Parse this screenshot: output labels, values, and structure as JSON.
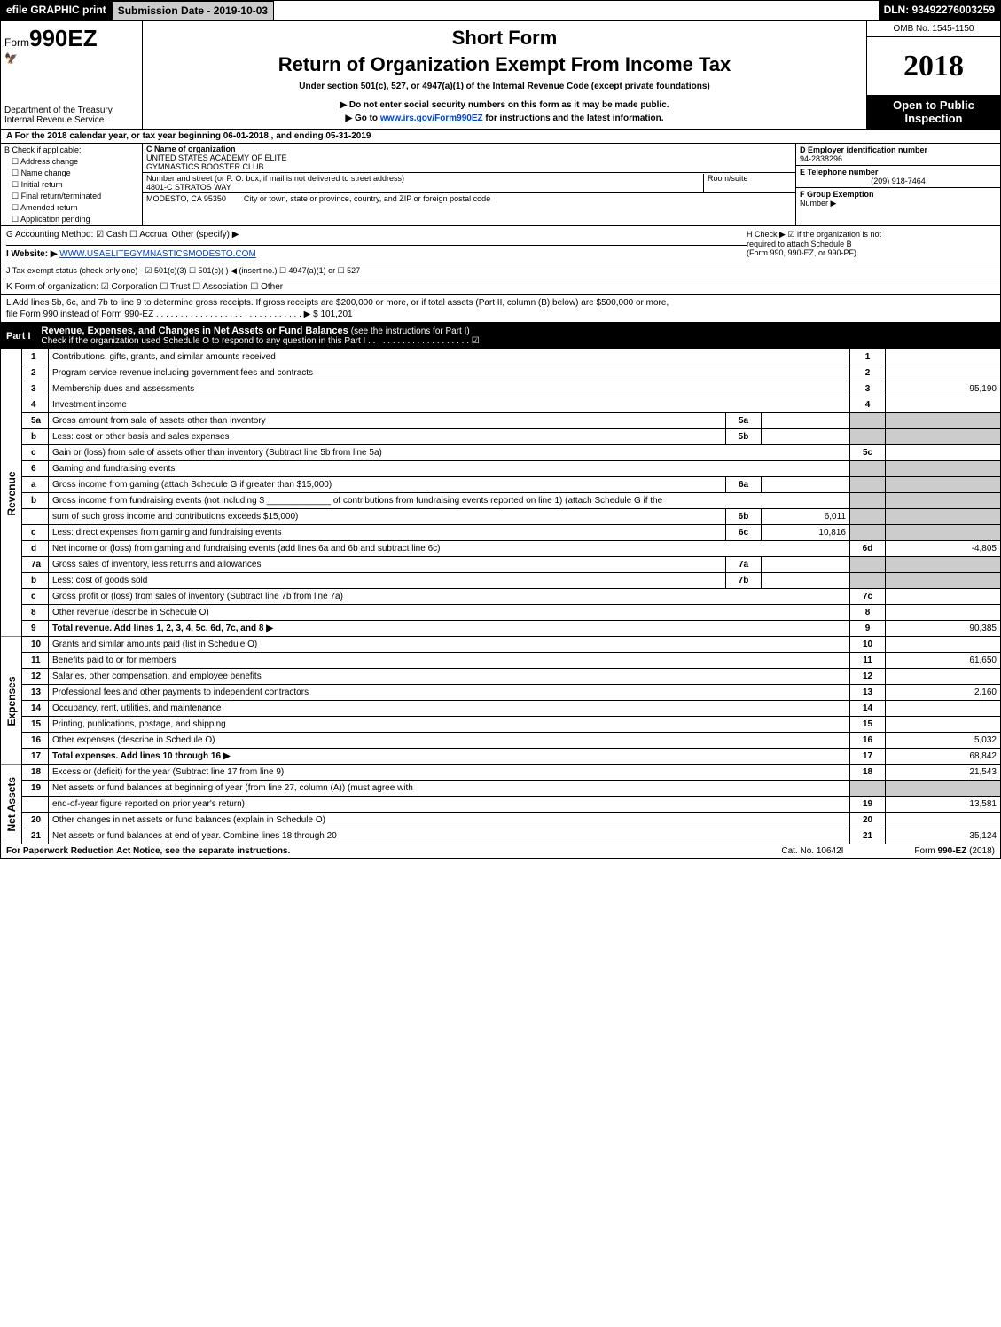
{
  "topbar": {
    "efile": "efile GRAPHIC print",
    "subdate": "Submission Date - 2019-10-03",
    "dln": "DLN: 93492276003259"
  },
  "header": {
    "form_prefix": "Form",
    "form_num": "990EZ",
    "dept1": "Department of the Treasury",
    "dept2": "Internal Revenue Service",
    "short": "Short Form",
    "title": "Return of Organization Exempt From Income Tax",
    "under": "Under section 501(c), 527, or 4947(a)(1) of the Internal Revenue Code (except private foundations)",
    "donot": "▶ Do not enter social security numbers on this form as it may be made public.",
    "goto_pre": "▶ Go to ",
    "goto_link": "www.irs.gov/Form990EZ",
    "goto_post": " for instructions and the latest information.",
    "omb": "OMB No. 1545-1150",
    "year": "2018",
    "open1": "Open to Public",
    "open2": "Inspection"
  },
  "lineA": {
    "pre": "A   For the 2018 calendar year, or tax year beginning ",
    "begin": "06-01-2018",
    "mid": " , and ending ",
    "end": "05-31-2019"
  },
  "colB": {
    "hdr": "B  Check if applicable:",
    "items": [
      "Address change",
      "Name change",
      "Initial return",
      "Final return/terminated",
      "Amended return",
      "Application pending"
    ]
  },
  "colC": {
    "c_lab": "C Name of organization",
    "org1": "UNITED STATES ACADEMY OF ELITE",
    "org2": "GYMNASTICS BOOSTER CLUB",
    "street_lab": "Number and street (or P. O. box, if mail is not delivered to street address)",
    "street": "4801-C STRATOS WAY",
    "rs_lab": "Room/suite",
    "city_lab": "City or town, state or province, country, and ZIP or foreign postal code",
    "city": "MODESTO, CA   95350"
  },
  "colD": {
    "d_lab": "D Employer identification number",
    "ein": "94-2838296",
    "e_lab": "E Telephone number",
    "phone": "(209) 918-7464",
    "f_lab": "F Group Exemption",
    "f_lab2": "Number   ▶"
  },
  "gh": {
    "g": "G Accounting Method:   ☑ Cash   ☐ Accrual   Other (specify) ▶",
    "h1": "H   Check ▶   ☑   if the organization is not",
    "h2": "required to attach Schedule B",
    "h3": "(Form 990, 990-EZ, or 990-PF).",
    "i_lab": "I Website: ▶",
    "i_url": "WWW.USAELITEGYMNASTICSMODESTO.COM",
    "j": "J Tax-exempt status (check only one) -  ☑ 501(c)(3)  ☐ 501(c)(  ) ◀ (insert no.)  ☐ 4947(a)(1) or  ☐ 527",
    "k": "K Form of organization:   ☑ Corporation   ☐ Trust   ☐ Association   ☐ Other",
    "l1": "L Add lines 5b, 6c, and 7b to line 9 to determine gross receipts. If gross receipts are $200,000 or more, or if total assets (Part II, column (B) below) are $500,000 or more,",
    "l2": "file Form 990 instead of Form 990-EZ  . . . . . . . . . . . . . . . . . . . . . . . . . . . . . .  ▶ $ 101,201"
  },
  "part1": {
    "label": "Part I",
    "title": "Revenue, Expenses, and Changes in Net Assets or Fund Balances ",
    "title2": "(see the instructions for Part I)",
    "sub": "Check if the organization used Schedule O to respond to any question in this Part I . . . . . . . . . . . . . . . . . . . . .   ☑"
  },
  "sides": {
    "rev": "Revenue",
    "exp": "Expenses",
    "net": "Net Assets"
  },
  "rows": [
    {
      "n": "1",
      "d": "Contributions, gifts, grants, and similar amounts received",
      "rn": "1",
      "rv": ""
    },
    {
      "n": "2",
      "d": "Program service revenue including government fees and contracts",
      "rn": "2",
      "rv": ""
    },
    {
      "n": "3",
      "d": "Membership dues and assessments",
      "rn": "3",
      "rv": "95,190"
    },
    {
      "n": "4",
      "d": "Investment income",
      "rn": "4",
      "rv": ""
    },
    {
      "n": "5a",
      "d": "Gross amount from sale of assets other than inventory",
      "mid": "5a",
      "midv": "",
      "grey": true
    },
    {
      "n": "b",
      "d": "Less: cost or other basis and sales expenses",
      "mid": "5b",
      "midv": "",
      "grey": true
    },
    {
      "n": "c",
      "d": "Gain or (loss) from sale of assets other than inventory (Subtract line 5b from line 5a)",
      "rn": "5c",
      "rv": ""
    },
    {
      "n": "6",
      "d": "Gaming and fundraising events",
      "grey": true
    },
    {
      "n": "a",
      "d": "Gross income from gaming (attach Schedule G if greater than $15,000)",
      "mid": "6a",
      "midv": "",
      "grey": true
    },
    {
      "n": "b",
      "d": "Gross income from fundraising events (not including $ _____________ of contributions from fundraising events reported on line 1) (attach Schedule G if the",
      "grey": true,
      "nob": true
    },
    {
      "n": "",
      "d": "sum of such gross income and contributions exceeds $15,000)",
      "mid": "6b",
      "midv": "6,011",
      "grey": true
    },
    {
      "n": "c",
      "d": "Less: direct expenses from gaming and fundraising events",
      "mid": "6c",
      "midv": "10,816",
      "grey": true
    },
    {
      "n": "d",
      "d": "Net income or (loss) from gaming and fundraising events (add lines 6a and 6b and subtract line 6c)",
      "rn": "6d",
      "rv": "-4,805"
    },
    {
      "n": "7a",
      "d": "Gross sales of inventory, less returns and allowances",
      "mid": "7a",
      "midv": "",
      "grey": true
    },
    {
      "n": "b",
      "d": "Less: cost of goods sold",
      "mid": "7b",
      "midv": "",
      "grey": true
    },
    {
      "n": "c",
      "d": "Gross profit or (loss) from sales of inventory (Subtract line 7b from line 7a)",
      "rn": "7c",
      "rv": ""
    },
    {
      "n": "8",
      "d": "Other revenue (describe in Schedule O)",
      "rn": "8",
      "rv": ""
    },
    {
      "n": "9",
      "d": "Total revenue. Add lines 1, 2, 3, 4, 5c, 6d, 7c, and 8                                                          ▶",
      "rn": "9",
      "rv": "90,385",
      "bold": true
    }
  ],
  "exp_rows": [
    {
      "n": "10",
      "d": "Grants and similar amounts paid (list in Schedule O)",
      "rn": "10",
      "rv": ""
    },
    {
      "n": "11",
      "d": "Benefits paid to or for members",
      "rn": "11",
      "rv": "61,650"
    },
    {
      "n": "12",
      "d": "Salaries, other compensation, and employee benefits",
      "rn": "12",
      "rv": ""
    },
    {
      "n": "13",
      "d": "Professional fees and other payments to independent contractors",
      "rn": "13",
      "rv": "2,160"
    },
    {
      "n": "14",
      "d": "Occupancy, rent, utilities, and maintenance",
      "rn": "14",
      "rv": ""
    },
    {
      "n": "15",
      "d": "Printing, publications, postage, and shipping",
      "rn": "15",
      "rv": ""
    },
    {
      "n": "16",
      "d": "Other expenses (describe in Schedule O)",
      "rn": "16",
      "rv": "5,032"
    },
    {
      "n": "17",
      "d": "Total expenses. Add lines 10 through 16                                                                       ▶",
      "rn": "17",
      "rv": "68,842",
      "bold": true
    }
  ],
  "net_rows": [
    {
      "n": "18",
      "d": "Excess or (deficit) for the year (Subtract line 17 from line 9)",
      "rn": "18",
      "rv": "21,543"
    },
    {
      "n": "19",
      "d": "Net assets or fund balances at beginning of year (from line 27, column (A)) (must agree with",
      "grey": true,
      "nob": true
    },
    {
      "n": "",
      "d": "end-of-year figure reported on prior year's return)",
      "rn": "19",
      "rv": "13,581"
    },
    {
      "n": "20",
      "d": "Other changes in net assets or fund balances (explain in Schedule O)",
      "rn": "20",
      "rv": ""
    },
    {
      "n": "21",
      "d": "Net assets or fund balances at end of year. Combine lines 18 through 20",
      "rn": "21",
      "rv": "35,124"
    }
  ],
  "footer": {
    "l": "For Paperwork Reduction Act Notice, see the separate instructions.",
    "c": "Cat. No. 10642I",
    "r": "Form 990-EZ (2018)"
  }
}
